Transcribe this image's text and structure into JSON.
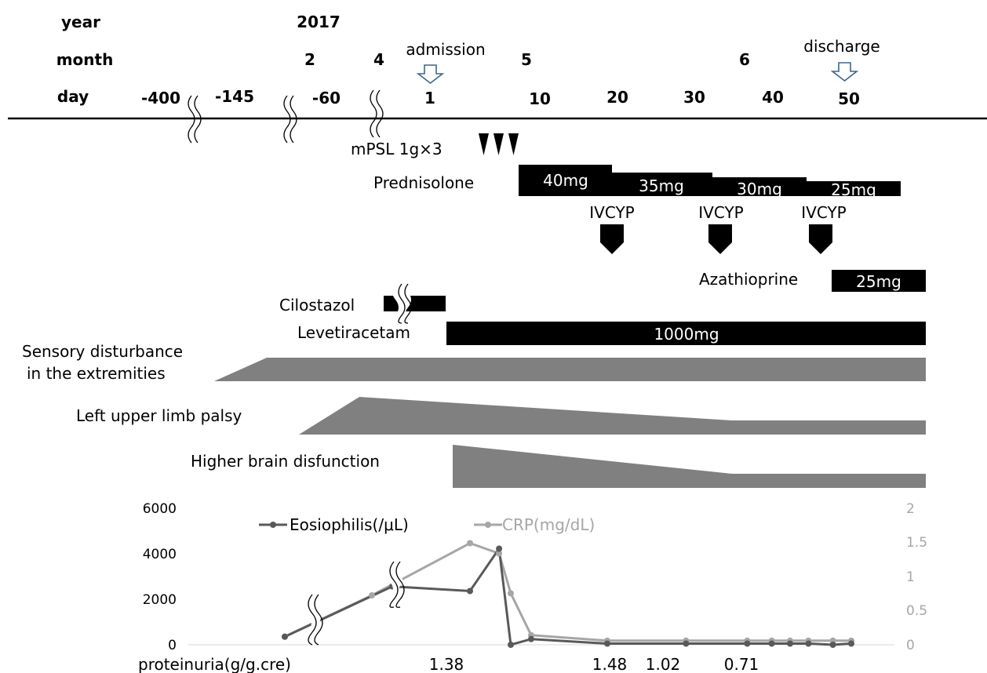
{
  "header": {
    "row_labels": {
      "year": "year",
      "month": "month",
      "day": "day"
    },
    "year": "2017",
    "months": [
      "2",
      "4",
      "5",
      "6"
    ],
    "days": [
      "-400",
      "-145",
      "-60",
      "1",
      "10",
      "20",
      "30",
      "40",
      "50"
    ],
    "admission": "admission",
    "discharge": "discharge"
  },
  "treatments": {
    "mpsl": "mPSL 1g×3",
    "prednisolone": {
      "label": "Prednisolone",
      "doses": [
        "40mg",
        "35mg",
        "30mg",
        "25mg"
      ]
    },
    "ivcyp": [
      "IVCYP",
      "IVCYP",
      "IVCYP"
    ],
    "azathioprine": {
      "label": "Azathioprine",
      "dose": "25mg"
    },
    "cilostazol": {
      "label": "Cilostazol"
    },
    "levetiracetam": {
      "label": "Levetiracetam",
      "dose": "1000mg"
    }
  },
  "symptoms": {
    "sensory_line1": "Sensory disturbance",
    "sensory_line2": "in the extremities",
    "palsy": "Left upper limb palsy",
    "brain": "Higher brain disfunction"
  },
  "colors": {
    "bar": "#000000",
    "symptom": "#808080",
    "eos": "#595959",
    "crp": "#a6a6a6"
  },
  "chart_data": {
    "type": "line",
    "series": [
      {
        "name": "Eosiophilis(/μL)",
        "axis": "left",
        "color": "#595959",
        "x": [
          -400,
          -60,
          -20,
          -5,
          1,
          7,
          20,
          33,
          43,
          47,
          50,
          53,
          57,
          60
        ],
        "values": [
          350,
          2550,
          2350,
          4200,
          0,
          250,
          50,
          50,
          50,
          50,
          50,
          50,
          0,
          50
        ]
      },
      {
        "name": "CRP(mg/dL)",
        "axis": "right",
        "color": "#a6a6a6",
        "x": [
          -400,
          -145,
          -20,
          -5,
          1,
          7,
          20,
          33,
          43,
          47,
          50,
          53,
          57,
          60
        ],
        "values": [
          0.12,
          0.72,
          1.48,
          1.33,
          0.75,
          0.14,
          0.06,
          0.06,
          0.06,
          0.06,
          0.06,
          0.06,
          0.06,
          0.06
        ]
      }
    ],
    "y_left": {
      "ticks": [
        "6000",
        "4000",
        "2000",
        "0"
      ],
      "ylim": [
        0,
        6000
      ]
    },
    "y_right": {
      "ticks": [
        "2",
        "1.5",
        "1",
        "0.5",
        "0"
      ],
      "ylim": [
        0,
        2
      ]
    },
    "proteinuria": {
      "label": "proteinuria(g/g.cre)",
      "values": [
        "1.38",
        "1.48",
        "1.02",
        "0.71"
      ]
    }
  }
}
